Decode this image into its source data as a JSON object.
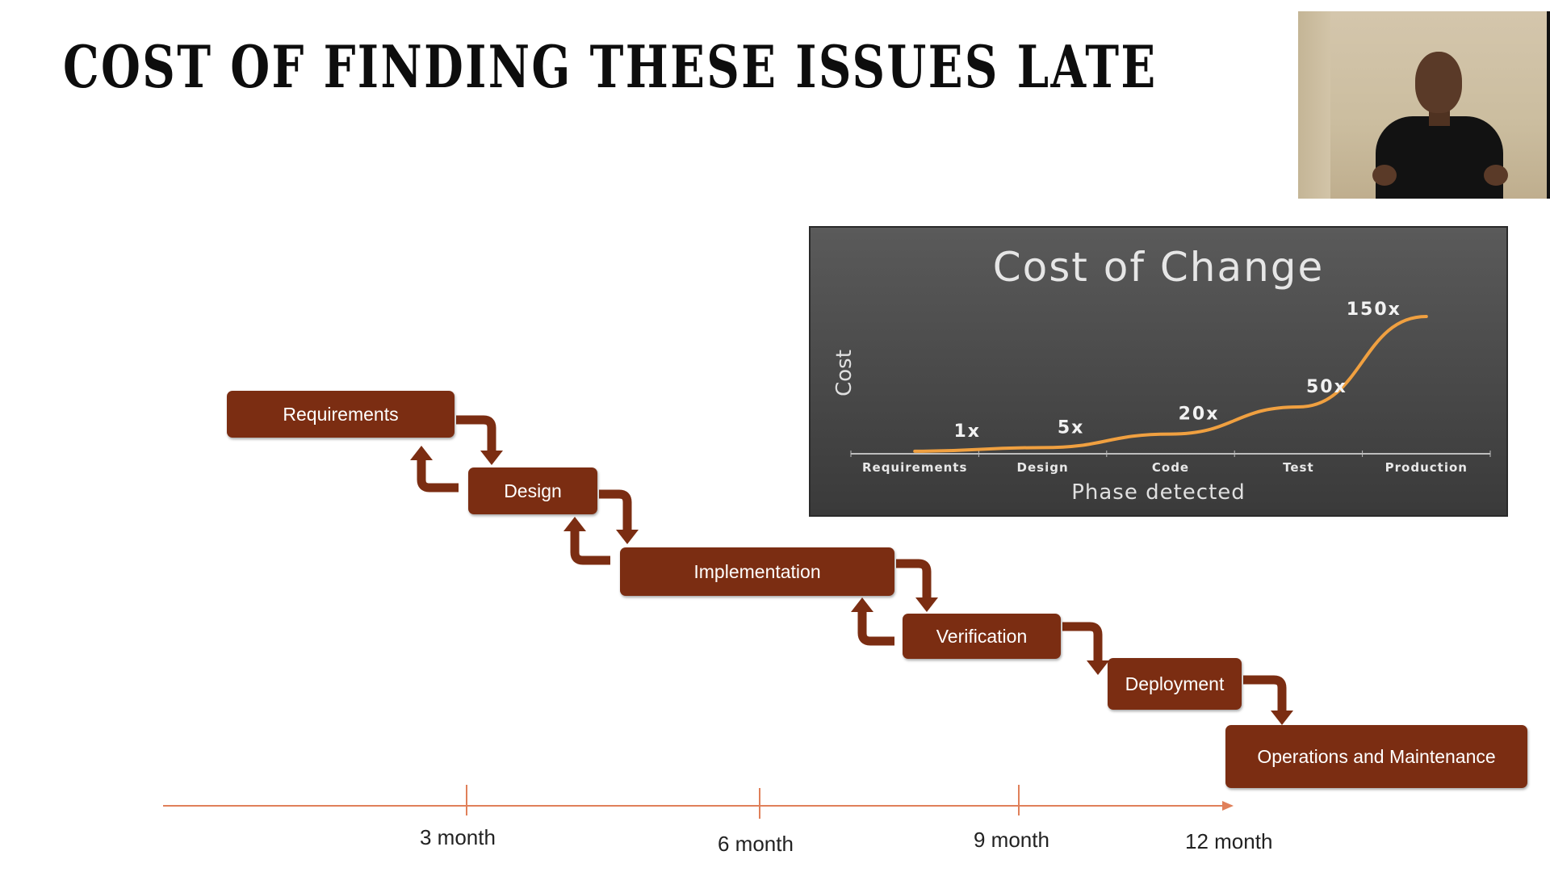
{
  "slide": {
    "title": "COST OF FINDING THESE ISSUES LATE"
  },
  "colors": {
    "phase_box": "#7b2d12",
    "arrow": "#7b2d12",
    "timeline": "#e0805a",
    "curve": "#f0a040"
  },
  "phases": [
    {
      "label": "Requirements"
    },
    {
      "label": "Design"
    },
    {
      "label": "Implementation"
    },
    {
      "label": "Verification"
    },
    {
      "label": "Deployment"
    },
    {
      "label": "Operations and Maintenance"
    }
  ],
  "timeline": {
    "ticks": [
      "3 month",
      "6 month",
      "9 month",
      "12 month"
    ]
  },
  "chart_data": {
    "type": "line",
    "title": "Cost of Change",
    "xlabel": "Phase detected",
    "ylabel": "Cost",
    "categories": [
      "Requirements",
      "Design",
      "Code",
      "Test",
      "Production"
    ],
    "values": [
      1,
      5,
      20,
      50,
      150
    ],
    "data_labels": [
      "1x",
      "5x",
      "20x",
      "50x",
      "150x"
    ],
    "grid": false,
    "legend": "none"
  }
}
